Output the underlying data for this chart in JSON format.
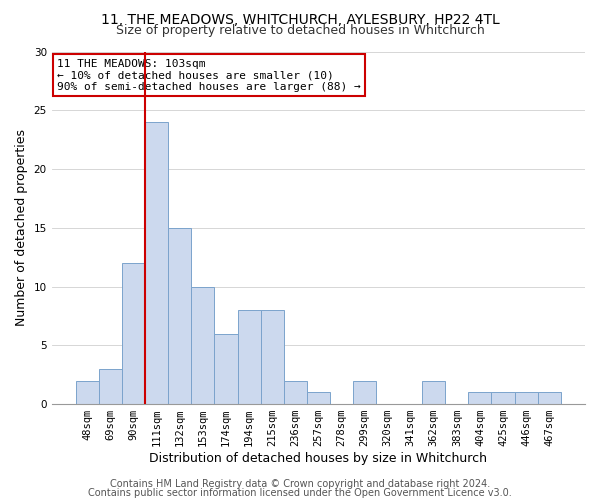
{
  "title": "11, THE MEADOWS, WHITCHURCH, AYLESBURY, HP22 4TL",
  "subtitle": "Size of property relative to detached houses in Whitchurch",
  "xlabel": "Distribution of detached houses by size in Whitchurch",
  "ylabel": "Number of detached properties",
  "bar_labels": [
    "48sqm",
    "69sqm",
    "90sqm",
    "111sqm",
    "132sqm",
    "153sqm",
    "174sqm",
    "194sqm",
    "215sqm",
    "236sqm",
    "257sqm",
    "278sqm",
    "299sqm",
    "320sqm",
    "341sqm",
    "362sqm",
    "383sqm",
    "404sqm",
    "425sqm",
    "446sqm",
    "467sqm"
  ],
  "bar_heights": [
    2,
    3,
    12,
    24,
    15,
    10,
    6,
    8,
    8,
    2,
    1,
    0,
    2,
    0,
    0,
    2,
    0,
    1,
    1,
    1,
    1
  ],
  "bar_color": "#ccd9ee",
  "bar_edge_color": "#7ba3cc",
  "vline_x": 2.5,
  "vline_color": "#cc0000",
  "annotation_text": "11 THE MEADOWS: 103sqm\n← 10% of detached houses are smaller (10)\n90% of semi-detached houses are larger (88) →",
  "annotation_box_color": "#ffffff",
  "annotation_box_edge": "#cc0000",
  "ylim": [
    0,
    30
  ],
  "yticks": [
    0,
    5,
    10,
    15,
    20,
    25,
    30
  ],
  "footer1": "Contains HM Land Registry data © Crown copyright and database right 2024.",
  "footer2": "Contains public sector information licensed under the Open Government Licence v3.0.",
  "title_fontsize": 10,
  "subtitle_fontsize": 9,
  "axis_label_fontsize": 9,
  "tick_fontsize": 7.5,
  "footer_fontsize": 7,
  "annotation_fontsize": 8
}
